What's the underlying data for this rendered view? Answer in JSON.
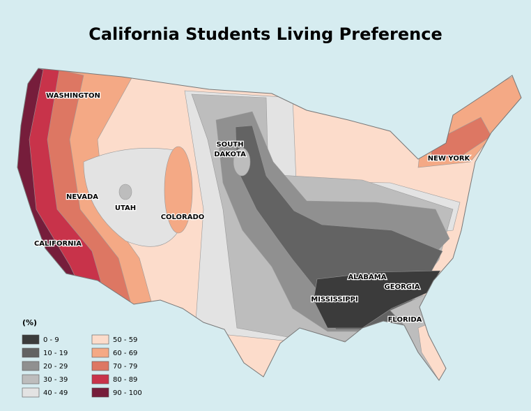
{
  "title": "California Students Living Preference",
  "legend": {
    "title": "(%)",
    "items": [
      {
        "label": "0 - 9",
        "color": "#3b3b3b"
      },
      {
        "label": "10 - 19",
        "color": "#636363"
      },
      {
        "label": "20 - 29",
        "color": "#909090"
      },
      {
        "label": "30 - 39",
        "color": "#bdbdbd"
      },
      {
        "label": "40 - 49",
        "color": "#e3e3e3"
      },
      {
        "label": "50 - 59",
        "color": "#fcdccb"
      },
      {
        "label": "60 - 69",
        "color": "#f4a985"
      },
      {
        "label": "70 - 79",
        "color": "#dd7763"
      },
      {
        "label": "80 - 89",
        "color": "#c8334a"
      },
      {
        "label": "90 - 100",
        "color": "#761d3b"
      }
    ]
  },
  "labels": [
    "WASHINGTON",
    "NEVADA",
    "UTAH",
    "COLORADO",
    "CALIFORNIA",
    "SOUTH",
    "DAKOTA",
    "NEW YORK",
    "ALABAMA",
    "GEORGIA",
    "MISSISSIPPI",
    "FLORIDA"
  ]
}
